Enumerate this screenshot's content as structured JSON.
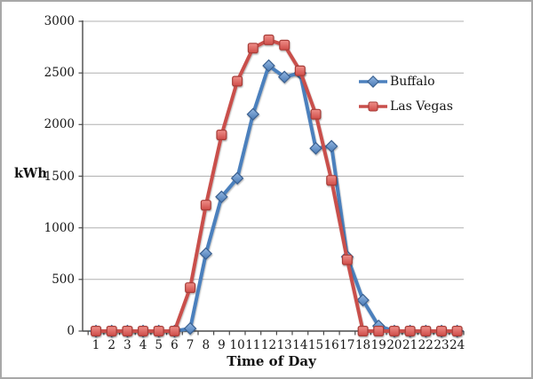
{
  "chart_data": {
    "type": "line",
    "title": "",
    "xlabel": "Time of Day",
    "ylabel": "kWh",
    "x": [
      1,
      2,
      3,
      4,
      5,
      6,
      7,
      8,
      9,
      10,
      11,
      12,
      13,
      14,
      15,
      16,
      17,
      18,
      19,
      20,
      21,
      22,
      23,
      24
    ],
    "ylim": [
      0,
      3000
    ],
    "yticks": [
      0,
      500,
      1000,
      1500,
      2000,
      2500,
      3000
    ],
    "grid": "horizontal",
    "legend_position": "middle-right",
    "series": [
      {
        "name": "Buffalo",
        "marker": "diamond",
        "line_color": "#4c80bd",
        "fill_top": "#93b7e2",
        "fill_bottom": "#4a7ab5",
        "edge_color": "#3a6190",
        "values": [
          0,
          0,
          0,
          0,
          0,
          0,
          25,
          750,
          1300,
          1480,
          2100,
          2570,
          2460,
          2500,
          1770,
          1790,
          720,
          300,
          50,
          0,
          0,
          0,
          0,
          0
        ]
      },
      {
        "name": "Las Vegas",
        "marker": "square",
        "line_color": "#c94f4b",
        "fill_top": "#ef8f89",
        "fill_bottom": "#cf4c48",
        "edge_color": "#a63c38",
        "values": [
          0,
          0,
          0,
          0,
          0,
          0,
          420,
          1220,
          1900,
          2420,
          2740,
          2820,
          2770,
          2520,
          2100,
          1460,
          690,
          0,
          0,
          0,
          0,
          0,
          0,
          0
        ]
      }
    ]
  },
  "colors": {
    "background": "#ffffff",
    "frame_border": "#a8a8a8",
    "gridline": "#b0b0b0",
    "axis": "#4a4a4a",
    "text": "#151515"
  }
}
